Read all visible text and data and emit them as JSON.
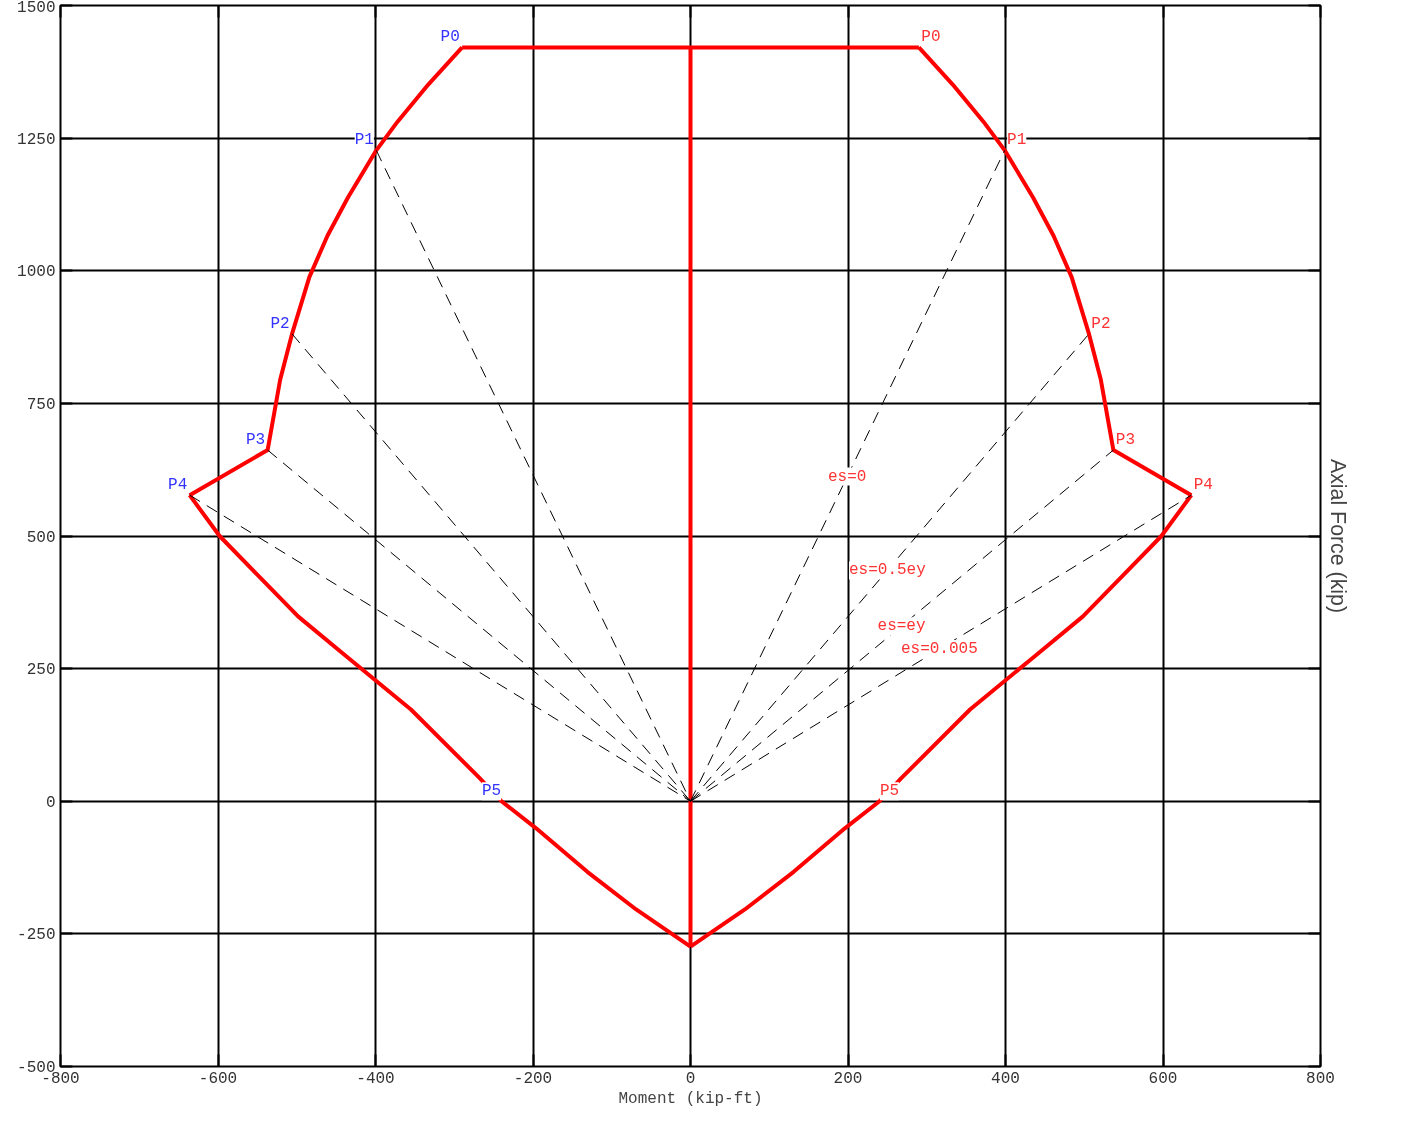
{
  "chart_data": {
    "type": "line",
    "xlabel": "Moment (kip-ft)",
    "ylabel": "Axial Force (kip)",
    "xlim": [
      -800,
      800
    ],
    "ylim": [
      -500,
      1500
    ],
    "xticks": [
      -800,
      -600,
      -400,
      -200,
      0,
      200,
      400,
      600,
      800
    ],
    "yticks": [
      -500,
      -250,
      0,
      250,
      500,
      750,
      1000,
      1250,
      1500
    ],
    "grid": true,
    "marker": "none",
    "series": [
      {
        "color": "#ff0000",
        "line_style": "solid",
        "x": [
          -290,
          290
        ],
        "values": [
          1421,
          1421
        ]
      },
      {
        "color": "#ff0000",
        "line_style": "solid",
        "x": [
          290,
          333,
          372,
          399,
          435,
          461,
          484,
          506,
          521,
          537,
          636
        ],
        "values": [
          1421,
          1351,
          1281,
          1227,
          1138,
          1066,
          988,
          881,
          795,
          662,
          577
        ]
      },
      {
        "color": "#ff0000",
        "line_style": "solid",
        "x": [
          0,
          69,
          131,
          196,
          240,
          268,
          355,
          436,
          498,
          548,
          598,
          636
        ],
        "values": [
          -274,
          -204,
          -133,
          -51,
          0,
          44,
          173,
          272,
          348,
          424,
          500,
          577
        ]
      },
      {
        "color": "#ff0000",
        "line_style": "solid",
        "x": [
          -636,
          -598,
          -548,
          -498,
          -436,
          -355,
          -268,
          -240,
          -196,
          -131,
          -69,
          0
        ],
        "values": [
          577,
          500,
          424,
          348,
          272,
          173,
          44,
          0,
          -51,
          -133,
          -204,
          -274
        ]
      },
      {
        "color": "#ff0000",
        "line_style": "solid",
        "x": [
          -636,
          -537,
          -521,
          -506,
          -484,
          -461,
          -435,
          -399,
          -372,
          -333,
          -290
        ],
        "values": [
          577,
          662,
          795,
          881,
          988,
          1066,
          1138,
          1227,
          1281,
          1351,
          1421
        ]
      },
      {
        "color": "#ff0000",
        "line_style": "solid",
        "x": [
          0,
          0
        ],
        "values": [
          -274,
          1421
        ]
      },
      {
        "color": "#000000",
        "line_style": "dashed",
        "x": [
          0,
          399
        ],
        "values": [
          0,
          1227
        ]
      },
      {
        "color": "#000000",
        "line_style": "dashed",
        "x": [
          0,
          506
        ],
        "values": [
          0,
          881
        ]
      },
      {
        "color": "#000000",
        "line_style": "dashed",
        "x": [
          0,
          537
        ],
        "values": [
          0,
          662
        ]
      },
      {
        "color": "#000000",
        "line_style": "dashed",
        "x": [
          0,
          636
        ],
        "values": [
          0,
          577
        ]
      },
      {
        "color": "#000000",
        "line_style": "dashed",
        "x": [
          -399,
          0
        ],
        "values": [
          1227,
          0
        ]
      },
      {
        "color": "#000000",
        "line_style": "dashed",
        "x": [
          -506,
          0
        ],
        "values": [
          881,
          0
        ]
      },
      {
        "color": "#000000",
        "line_style": "dashed",
        "x": [
          -537,
          0
        ],
        "values": [
          662,
          0
        ]
      },
      {
        "color": "#000000",
        "line_style": "dashed",
        "x": [
          -636,
          0
        ],
        "values": [
          577,
          0
        ]
      }
    ],
    "annotations": [
      {
        "text": "P0",
        "x": -290,
        "y": 1421
      },
      {
        "text": "P1",
        "x": -399,
        "y": 1227
      },
      {
        "text": "P2",
        "x": -506,
        "y": 881
      },
      {
        "text": "P3",
        "x": -537,
        "y": 662
      },
      {
        "text": "P4",
        "x": -636,
        "y": 577
      },
      {
        "text": "P5",
        "x": -240,
        "y": 0
      },
      {
        "text": "P0",
        "x": 290,
        "y": 1421
      },
      {
        "text": "P1",
        "x": 399,
        "y": 1227
      },
      {
        "text": "P2",
        "x": 506,
        "y": 881
      },
      {
        "text": "P3",
        "x": 537,
        "y": 662
      },
      {
        "text": "P4",
        "x": 636,
        "y": 577
      },
      {
        "text": "P5",
        "x": 240,
        "y": 0
      },
      {
        "text": "es=0",
        "x": 199,
        "y": 612
      },
      {
        "text": "es=0.5ey",
        "x": 250,
        "y": 435
      },
      {
        "text": "es=ey",
        "x": 268,
        "y": 330
      },
      {
        "text": "es=0.005",
        "x": 316,
        "y": 287
      }
    ]
  }
}
